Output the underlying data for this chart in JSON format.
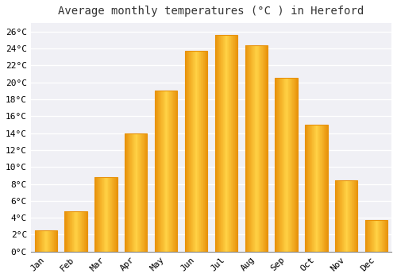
{
  "title": "Average monthly temperatures (°C ) in Hereford",
  "months": [
    "Jan",
    "Feb",
    "Mar",
    "Apr",
    "May",
    "Jun",
    "Jul",
    "Aug",
    "Sep",
    "Oct",
    "Nov",
    "Dec"
  ],
  "values": [
    2.5,
    4.8,
    8.8,
    14.0,
    19.0,
    23.7,
    25.6,
    24.4,
    20.5,
    15.0,
    8.4,
    3.7
  ],
  "bar_color_center": "#FFCC44",
  "bar_color_edge": "#E8920A",
  "background_color": "#FFFFFF",
  "plot_bg_color": "#F0F0F5",
  "grid_color": "#FFFFFF",
  "ylim": [
    0,
    27
  ],
  "yticks": [
    0,
    2,
    4,
    6,
    8,
    10,
    12,
    14,
    16,
    18,
    20,
    22,
    24,
    26
  ],
  "title_fontsize": 10,
  "tick_fontsize": 8,
  "font_family": "monospace"
}
